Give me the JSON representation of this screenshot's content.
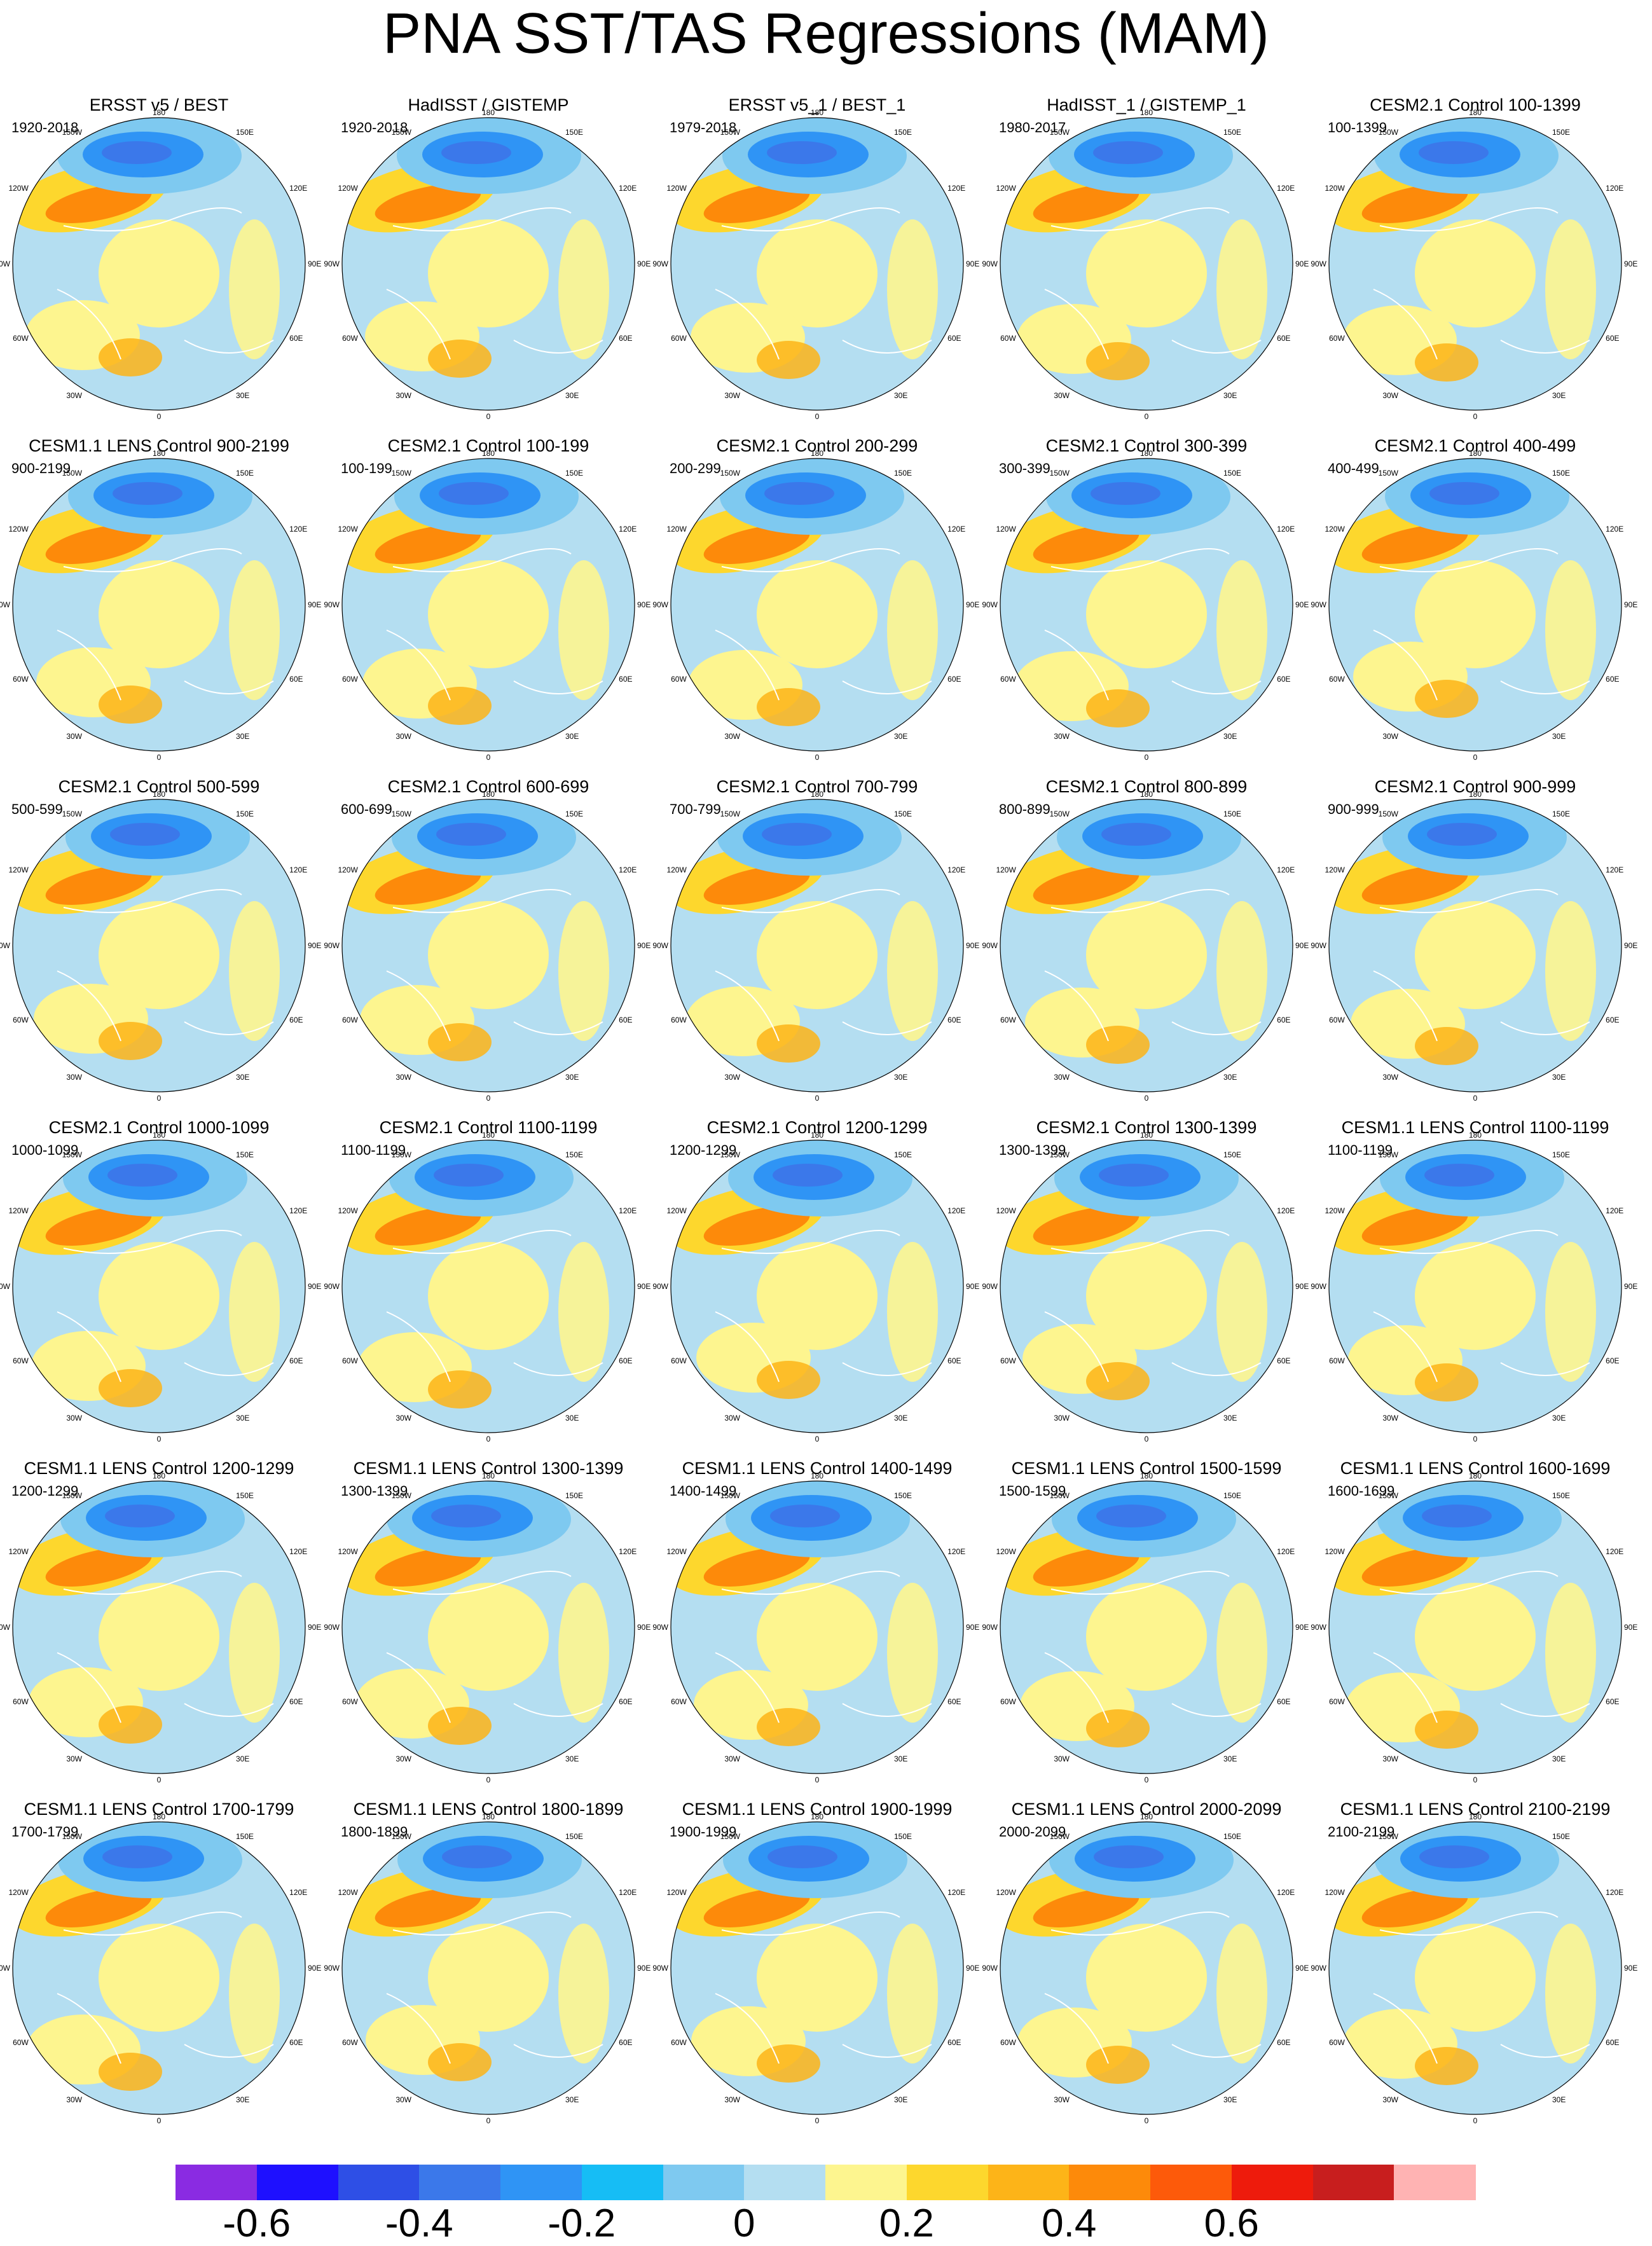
{
  "title": "PNA SST/TAS Regressions (MAM)",
  "map_labels": {
    "lon_180": "180",
    "lon_150w": "150W",
    "lon_150e": "150E",
    "lon_120w": "120W",
    "lon_120e": "120E",
    "lon_90w": "90W",
    "lon_90e": "90E",
    "lon_60w": "60W",
    "lon_60e": "60E",
    "lon_30w": "30W",
    "lon_30e": "30E",
    "lon_0": "0"
  },
  "panels": [
    {
      "title": "ERSST v5 / BEST",
      "period": "1920-2018"
    },
    {
      "title": "HadISST / GISTEMP",
      "period": "1920-2018"
    },
    {
      "title": "ERSST v5_1 / BEST_1",
      "period": "1979-2018"
    },
    {
      "title": "HadISST_1 / GISTEMP_1",
      "period": "1980-2017"
    },
    {
      "title": "CESM2.1 Control 100-1399",
      "period": "100-1399"
    },
    {
      "title": "CESM1.1 LENS Control 900-2199",
      "period": "900-2199"
    },
    {
      "title": "CESM2.1 Control 100-199",
      "period": "100-199"
    },
    {
      "title": "CESM2.1 Control 200-299",
      "period": "200-299"
    },
    {
      "title": "CESM2.1 Control 300-399",
      "period": "300-399"
    },
    {
      "title": "CESM2.1 Control 400-499",
      "period": "400-499"
    },
    {
      "title": "CESM2.1 Control 500-599",
      "period": "500-599"
    },
    {
      "title": "CESM2.1 Control 600-699",
      "period": "600-699"
    },
    {
      "title": "CESM2.1 Control 700-799",
      "period": "700-799"
    },
    {
      "title": "CESM2.1 Control 800-899",
      "period": "800-899"
    },
    {
      "title": "CESM2.1 Control 900-999",
      "period": "900-999"
    },
    {
      "title": "CESM2.1 Control 1000-1099",
      "period": "1000-1099"
    },
    {
      "title": "CESM2.1 Control 1100-1199",
      "period": "1100-1199"
    },
    {
      "title": "CESM2.1 Control 1200-1299",
      "period": "1200-1299"
    },
    {
      "title": "CESM2.1 Control 1300-1399",
      "period": "1300-1399"
    },
    {
      "title": "CESM1.1 LENS Control 1100-1199",
      "period": "1100-1199"
    },
    {
      "title": "CESM1.1 LENS Control 1200-1299",
      "period": "1200-1299"
    },
    {
      "title": "CESM1.1 LENS Control 1300-1399",
      "period": "1300-1399"
    },
    {
      "title": "CESM1.1 LENS Control 1400-1499",
      "period": "1400-1499"
    },
    {
      "title": "CESM1.1 LENS Control 1500-1599",
      "period": "1500-1599"
    },
    {
      "title": "CESM1.1 LENS Control 1600-1699",
      "period": "1600-1699"
    },
    {
      "title": "CESM1.1 LENS Control 1700-1799",
      "period": "1700-1799"
    },
    {
      "title": "CESM1.1 LENS Control 1800-1899",
      "period": "1800-1899"
    },
    {
      "title": "CESM1.1 LENS Control 1900-1999",
      "period": "1900-1999"
    },
    {
      "title": "CESM1.1 LENS Control 2000-2099",
      "period": "2000-2099"
    },
    {
      "title": "CESM1.1 LENS Control 2100-2199",
      "period": "2100-2199"
    }
  ],
  "colorbar": {
    "colors": [
      "#8a2be2",
      "#1e10ff",
      "#2e4fe6",
      "#3b78ea",
      "#2f94f5",
      "#16bdf5",
      "#7ec9f0",
      "#b4def1",
      "#fdf58f",
      "#fdd72d",
      "#fdb418",
      "#fd8a0a",
      "#fd5a0a",
      "#ee1b0c",
      "#c81e1e",
      "#ffb3b3"
    ],
    "tick_labels": [
      "-0.6",
      "-0.4",
      "-0.2",
      "0",
      "0.2",
      "0.4",
      "0.6"
    ]
  }
}
